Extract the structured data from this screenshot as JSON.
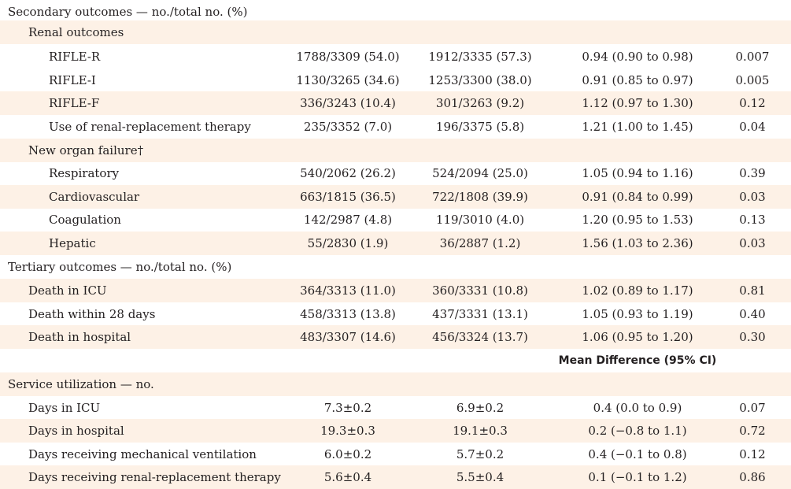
{
  "secondary": {
    "heading": "Secondary outcomes — no./total no. (%)",
    "renal": {
      "heading": "Renal outcomes",
      "rows": [
        {
          "label": "RIFLE-R",
          "g1": "1788/3309 (54.0)",
          "g2": "1912/3335 (57.3)",
          "effect": "0.94 (0.90 to 0.98)",
          "p": "0.007"
        },
        {
          "label": "RIFLE-I",
          "g1": "1130/3265 (34.6)",
          "g2": "1253/3300 (38.0)",
          "effect": "0.91 (0.85 to 0.97)",
          "p": "0.005"
        },
        {
          "label": "RIFLE-F",
          "g1": "336/3243 (10.4)",
          "g2": "301/3263 (9.2)",
          "effect": "1.12 (0.97 to 1.30)",
          "p": "0.12"
        },
        {
          "label": "Use of renal-replacement therapy",
          "g1": "235/3352 (7.0)",
          "g2": "196/3375 (5.8)",
          "effect": "1.21 (1.00 to 1.45)",
          "p": "0.04"
        }
      ]
    },
    "organ": {
      "heading": "New organ failure†",
      "rows": [
        {
          "label": "Respiratory",
          "g1": "540/2062 (26.2)",
          "g2": "524/2094 (25.0)",
          "effect": "1.05 (0.94 to 1.16)",
          "p": "0.39"
        },
        {
          "label": "Cardiovascular",
          "g1": "663/1815 (36.5)",
          "g2": "722/1808 (39.9)",
          "effect": "0.91 (0.84 to 0.99)",
          "p": "0.03"
        },
        {
          "label": "Coagulation",
          "g1": "142/2987 (4.8)",
          "g2": "119/3010 (4.0)",
          "effect": "1.20 (0.95 to 1.53)",
          "p": "0.13"
        },
        {
          "label": "Hepatic",
          "g1": "55/2830 (1.9)",
          "g2": "36/2887 (1.2)",
          "effect": "1.56 (1.03 to 2.36)",
          "p": "0.03"
        }
      ]
    }
  },
  "tertiary": {
    "heading": "Tertiary outcomes — no./total no. (%)",
    "rows": [
      {
        "label": "Death in ICU",
        "g1": "364/3313 (11.0)",
        "g2": "360/3331 (10.8)",
        "effect": "1.02 (0.89 to 1.17)",
        "p": "0.81"
      },
      {
        "label": "Death within 28 days",
        "g1": "458/3313 (13.8)",
        "g2": "437/3331 (13.1)",
        "effect": "1.05 (0.93 to 1.19)",
        "p": "0.40"
      },
      {
        "label": "Death in hospital",
        "g1": "483/3307 (14.6)",
        "g2": "456/3324 (13.7)",
        "effect": "1.06 (0.95 to 1.20)",
        "p": "0.30"
      }
    ]
  },
  "mean_difference_header": "Mean Difference (95% CI)",
  "service": {
    "heading": "Service utilization — no.",
    "rows": [
      {
        "label": "Days in ICU",
        "g1": "7.3±0.2",
        "g2": "6.9±0.2",
        "effect": "0.4 (0.0 to 0.9)",
        "p": "0.07"
      },
      {
        "label": "Days in hospital",
        "g1": "19.3±0.3",
        "g2": "19.1±0.3",
        "effect": "0.2 (−0.8 to 1.1)",
        "p": "0.72"
      },
      {
        "label": "Days receiving mechanical ventilation",
        "g1": "6.0±0.2",
        "g2": "5.7±0.2",
        "effect": "0.4 (−0.1 to 0.8)",
        "p": "0.12"
      },
      {
        "label": "Days receiving renal-replacement therapy",
        "g1": "5.6±0.4",
        "g2": "5.5±0.4",
        "effect": "0.1 (−0.1 to 1.2)",
        "p": "0.86"
      }
    ]
  }
}
